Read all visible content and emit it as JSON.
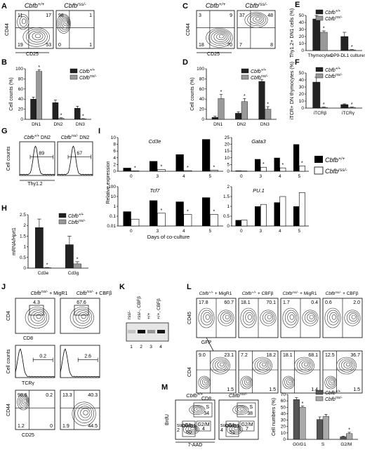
{
  "figure": {
    "panel_letters": [
      "A",
      "B",
      "C",
      "D",
      "E",
      "F",
      "G",
      "H",
      "I",
      "J",
      "K",
      "L",
      "M",
      "N"
    ],
    "genotypes": {
      "wt": "Cbfb+/+",
      "ko": "Cbfbrss/-"
    },
    "panel_A": {
      "xlabel": "CD25",
      "ylabel": "CD44",
      "plots": [
        {
          "title": "Cbfb+/+",
          "quadrants": [
            "11",
            "17",
            "53",
            "19"
          ]
        },
        {
          "title": "Cbfbrss/-",
          "quadrants": [
            "98",
            "1",
            "1",
            "0"
          ]
        }
      ]
    },
    "panel_C": {
      "xlabel": "CD25",
      "ylabel": "CD44",
      "plots": [
        {
          "title": "Cbfb+/+",
          "quadrants": [
            "3",
            "9",
            "70",
            "18"
          ]
        },
        {
          "title": "Cbfbrss/-",
          "quadrants": [
            "37",
            "48",
            "8",
            "7"
          ]
        }
      ]
    },
    "panel_G": {
      "ylabel": "Cell counts",
      "xlabel": "Thy1.2",
      "plots": [
        {
          "title": "Cbfb+/+ DN2",
          "value": "89"
        },
        {
          "title": "Cbfbrss/- DN2",
          "value": "67"
        }
      ]
    },
    "panel_J": {
      "titles": [
        "Cbfbrss/- + MigR1",
        "Cbfbrss/- + CBFβ"
      ],
      "row1": {
        "ylabel": "CD4",
        "xlabel": "CD8",
        "values": [
          "4.3",
          "67.6"
        ]
      },
      "row2": {
        "ylabel": "Cell counts",
        "xlabel": "TCRγ",
        "values": [
          "0.2",
          "2.6"
        ]
      },
      "row3": {
        "ylabel": "CD44",
        "xlabel": "CD25",
        "plots": [
          {
            "quadrants": [
              "98.6",
              "0.2",
              "0",
              "1.2"
            ]
          },
          {
            "quadrants": [
              "13.3",
              "40.3",
              "44.5",
              "1.9"
            ]
          }
        ]
      }
    },
    "panel_K": {
      "lanes": [
        "rss/-",
        "rss/-, CBFβ",
        "+/+",
        "+/+, CBFβ"
      ],
      "lane_numbers": [
        "1",
        "2",
        "3",
        "4"
      ]
    },
    "panel_L": {
      "titles": [
        "Cbfb+/+ + MigR1",
        "Cbfb+/+ + CBFβ",
        "Cbfbrss/- + MigR1",
        "Cbfbrss/- + CBFβ"
      ],
      "top": {
        "ylabel": "CD45",
        "xlabel": "GFP",
        "values": [
          [
            "17.8",
            "60.7"
          ],
          [
            "18.1",
            "70.1"
          ],
          [
            "1.7",
            "0.4"
          ],
          [
            "0.6",
            "2.0"
          ]
        ]
      },
      "bottom": {
        "ylabel": "CD4",
        "xlabel": "CD8",
        "values": [
          [
            "9.0",
            "23.1",
            "1.5"
          ],
          [
            "7.2",
            "18.2",
            "1.5"
          ],
          [
            "18.1",
            "68.1",
            "1.4"
          ],
          [
            "12.5",
            "36.7",
            "1.5"
          ]
        ]
      }
    },
    "panel_M": {
      "titles": [
        "Cbfb+/+",
        "Cbfbrss/-"
      ],
      "ylabel": "BrdU",
      "xlabel": "7-AAD",
      "gates": [
        {
          "S": "34",
          "G0G1": "60",
          "G2M": "4",
          "subG1": "2"
        },
        {
          "S": "38",
          "G0G1": "51",
          "G2M": "7",
          "subG1": "4"
        }
      ],
      "gate_labels": {
        "S": "S",
        "G0G1": "G0/G1",
        "G2M": "G2/M",
        "subG1": "subG1"
      }
    },
    "significance_mark": "*"
  },
  "chart_data": [
    {
      "panel": "B",
      "type": "bar",
      "categories": [
        "DN1",
        "DN2",
        "DN3"
      ],
      "series": [
        {
          "name": "Cbfb+/+",
          "values": [
            40,
            33,
            22
          ],
          "errors": [
            4,
            5,
            4
          ],
          "color": "#222222"
        },
        {
          "name": "Cbfbrss/-",
          "values": [
            95,
            2,
            1
          ],
          "errors": [
            3,
            1,
            0.5
          ],
          "color": "#999999"
        }
      ],
      "ylabel": "Cell counts (%)",
      "ylim": [
        0,
        100
      ],
      "yticks": [
        0,
        20,
        40,
        60,
        80,
        100
      ],
      "sig": [
        1,
        1,
        1
      ]
    },
    {
      "panel": "D",
      "type": "bar",
      "categories": [
        "DN1",
        "DN2",
        "DN3"
      ],
      "series": [
        {
          "name": "Cbfb+/+",
          "values": [
            4,
            12,
            75
          ],
          "errors": [
            2,
            3,
            4
          ],
          "color": "#222222"
        },
        {
          "name": "Cbfbrss/-",
          "values": [
            41,
            35,
            20
          ],
          "errors": [
            8,
            6,
            5
          ],
          "color": "#999999"
        }
      ],
      "ylabel": "Cell counts (%)",
      "ylim": [
        0,
        100
      ],
      "yticks": [
        0,
        20,
        40,
        60,
        80,
        100
      ],
      "sig": [
        1,
        1,
        1
      ]
    },
    {
      "panel": "E",
      "type": "bar",
      "categories": [
        "Thymocytes",
        "OP9-DL1 cultures"
      ],
      "series": [
        {
          "name": "Cbfb+/+",
          "values": [
            45,
            20
          ],
          "errors": [
            5,
            6
          ],
          "color": "#222222"
        },
        {
          "name": "Cbfbrss/-",
          "values": [
            26,
            1
          ],
          "errors": [
            2,
            0.5
          ],
          "color": "#999999"
        }
      ],
      "ylabel": "Thy1.2+ DN1 cells (%)",
      "ylim": [
        0,
        50
      ],
      "yticks": [
        0,
        10,
        20,
        30,
        40,
        50
      ],
      "sig": [
        1,
        1
      ]
    },
    {
      "panel": "F",
      "type": "bar",
      "categories": [
        "iTCRβ",
        "iTCRγ"
      ],
      "series": [
        {
          "name": "Cbfb+/+",
          "values": [
            37,
            5
          ],
          "errors": [
            7,
            1
          ],
          "color": "#222222"
        },
        {
          "name": "Cbfbrss/-",
          "values": [
            1,
            1
          ],
          "errors": [
            0.5,
            0.5
          ],
          "color": "#999999"
        }
      ],
      "ylabel": "iTCR+ DN thymocytes (%)",
      "ylim": [
        0,
        50
      ],
      "yticks": [
        0,
        10,
        20,
        30,
        40,
        50
      ],
      "sig": [
        1,
        1
      ]
    },
    {
      "panel": "H",
      "type": "bar",
      "categories": [
        "Cd3e",
        "Cd3g"
      ],
      "series": [
        {
          "name": "Cbfb+/+",
          "values": [
            1.9,
            1.1
          ],
          "errors": [
            0.4,
            0.4
          ],
          "color": "#222222"
        },
        {
          "name": "Cbfbrss/-",
          "values": [
            0.02,
            0.2
          ],
          "errors": [
            0.01,
            0.1
          ],
          "color": "#999999"
        }
      ],
      "ylabel": "mRNA/Hprt1",
      "ylim": [
        0,
        2.5
      ],
      "yticks": [
        0,
        0.5,
        1,
        1.5,
        2,
        2.5
      ],
      "sig": [
        1,
        1
      ]
    },
    {
      "panel": "I",
      "type": "bar",
      "legend": [
        "Cbfb+/+",
        "Cbfbrss/-"
      ],
      "xlabel": "Days of co-culture",
      "ylabel": "Relative expression",
      "categories": [
        "0",
        "3",
        "4",
        "5"
      ],
      "subplots": [
        {
          "gene": "Cd3e",
          "ylim": [
            0,
            10
          ],
          "yticks": [
            0,
            2,
            4,
            6,
            8,
            10
          ],
          "wt": [
            1,
            3,
            5,
            9.5
          ],
          "ko": [
            0.1,
            0.5,
            0.2,
            0.3
          ],
          "sig": [
            1,
            1,
            1,
            1
          ]
        },
        {
          "gene": "Gata3",
          "ylim": [
            0,
            25
          ],
          "yticks": [
            0,
            5,
            10,
            15,
            20,
            25
          ],
          "wt": [
            0.5,
            9,
            10,
            20
          ],
          "ko": [
            0.2,
            3,
            2.5,
            4
          ],
          "sig": [
            0,
            1,
            1,
            1
          ]
        },
        {
          "gene": "Tcf7",
          "ylim": [
            0.01,
            100
          ],
          "log": true,
          "yticks": [
            0.01,
            0.1,
            1,
            10,
            100
          ],
          "wt": [
            0.3,
            4,
            3,
            8
          ],
          "ko": [
            0.05,
            0.2,
            0.15,
            0.15
          ],
          "sig": [
            0,
            1,
            1,
            1
          ]
        },
        {
          "gene": "PU.1",
          "ylim": [
            0,
            2
          ],
          "yticks": [
            0,
            0.5,
            1,
            1.5,
            2
          ],
          "wt": [
            0.3,
            1.0,
            1.2,
            1.0
          ],
          "ko": [
            0.3,
            1.1,
            1.5,
            1.7
          ],
          "sig": [
            0,
            0,
            0,
            0
          ]
        }
      ]
    },
    {
      "panel": "N",
      "type": "bar",
      "categories": [
        "G0/G1",
        "S",
        "G2/M"
      ],
      "series": [
        {
          "name": "Cbfb+/+",
          "values": [
            62,
            31,
            4
          ],
          "errors": [
            3,
            4,
            1
          ],
          "color": "#555555"
        },
        {
          "name": "Cbfbrss/-",
          "values": [
            50,
            36,
            9
          ],
          "errors": [
            2,
            3,
            2
          ],
          "color": "#aaaaaa"
        }
      ],
      "ylabel": "Cell numbers (%)",
      "ylim": [
        0,
        70
      ],
      "yticks": [
        0,
        10,
        20,
        30,
        40,
        50,
        60,
        70
      ],
      "sig": [
        1,
        0,
        1
      ]
    }
  ]
}
